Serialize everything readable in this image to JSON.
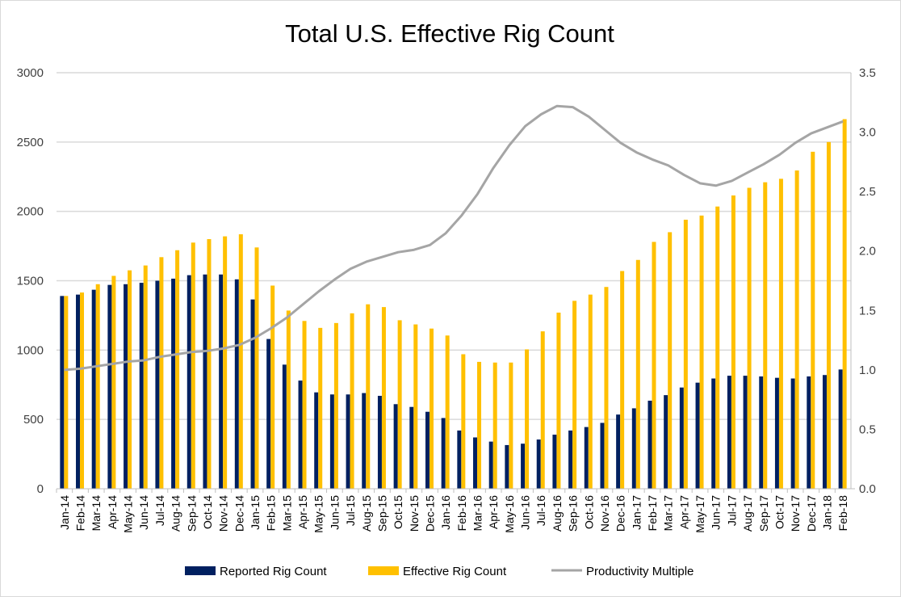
{
  "chart_data": {
    "type": "bar",
    "title": "Total U.S. Effective Rig Count",
    "xlabel": "",
    "ylabel": "",
    "ylim": [
      0,
      3000
    ],
    "yticks": [
      0,
      500,
      1000,
      1500,
      2000,
      2500,
      3000
    ],
    "y2lim": [
      0.0,
      3.5
    ],
    "y2ticks": [
      "0.0",
      "0.5",
      "1.0",
      "1.5",
      "2.0",
      "2.5",
      "3.0",
      "3.5"
    ],
    "grid": true,
    "legend_position": "bottom",
    "categories": [
      "Jan-14",
      "Feb-14",
      "Mar-14",
      "Apr-14",
      "May-14",
      "Jun-14",
      "Jul-14",
      "Aug-14",
      "Sep-14",
      "Oct-14",
      "Nov-14",
      "Dec-14",
      "Jan-15",
      "Feb-15",
      "Mar-15",
      "Apr-15",
      "May-15",
      "Jun-15",
      "Jul-15",
      "Aug-15",
      "Sep-15",
      "Oct-15",
      "Nov-15",
      "Dec-15",
      "Jan-16",
      "Feb-16",
      "Mar-16",
      "Apr-16",
      "May-16",
      "Jun-16",
      "Jul-16",
      "Aug-16",
      "Sep-16",
      "Oct-16",
      "Nov-16",
      "Dec-16",
      "Jan-17",
      "Feb-17",
      "Mar-17",
      "Apr-17",
      "May-17",
      "Jun-17",
      "Jul-17",
      "Aug-17",
      "Sep-17",
      "Oct-17",
      "Nov-17",
      "Dec-17",
      "Jan-18",
      "Feb-18"
    ],
    "series": [
      {
        "name": "Reported Rig Count",
        "type": "bar",
        "axis": "left",
        "color": "#002060",
        "values": [
          1390,
          1400,
          1435,
          1470,
          1475,
          1485,
          1500,
          1515,
          1540,
          1545,
          1545,
          1510,
          1365,
          1080,
          895,
          780,
          695,
          680,
          680,
          690,
          670,
          610,
          590,
          555,
          510,
          420,
          370,
          340,
          315,
          325,
          355,
          390,
          420,
          445,
          475,
          535,
          580,
          635,
          675,
          730,
          765,
          795,
          815,
          815,
          810,
          800,
          795,
          810,
          820,
          860
        ]
      },
      {
        "name": "Effective Rig Count",
        "type": "bar",
        "axis": "left",
        "color": "#FFC000",
        "values": [
          1390,
          1415,
          1475,
          1535,
          1575,
          1610,
          1670,
          1720,
          1775,
          1800,
          1820,
          1835,
          1740,
          1465,
          1285,
          1210,
          1160,
          1195,
          1265,
          1330,
          1310,
          1215,
          1185,
          1155,
          1105,
          970,
          915,
          910,
          910,
          1005,
          1135,
          1270,
          1355,
          1400,
          1455,
          1570,
          1650,
          1780,
          1850,
          1940,
          1970,
          2035,
          2115,
          2170,
          2210,
          2235,
          2295,
          2430,
          2500,
          2665
        ]
      },
      {
        "name": "Productivity Multiple",
        "type": "line",
        "axis": "right",
        "color": "#A5A5A5",
        "values": [
          1.0,
          1.01,
          1.03,
          1.05,
          1.07,
          1.08,
          1.11,
          1.13,
          1.15,
          1.16,
          1.18,
          1.21,
          1.27,
          1.35,
          1.44,
          1.55,
          1.66,
          1.76,
          1.85,
          1.91,
          1.95,
          1.99,
          2.01,
          2.05,
          2.15,
          2.3,
          2.48,
          2.7,
          2.89,
          3.05,
          3.15,
          3.22,
          3.21,
          3.13,
          3.02,
          2.91,
          2.83,
          2.77,
          2.72,
          2.64,
          2.57,
          2.55,
          2.59,
          2.66,
          2.73,
          2.81,
          2.91,
          2.99,
          3.04,
          3.09
        ]
      }
    ]
  }
}
